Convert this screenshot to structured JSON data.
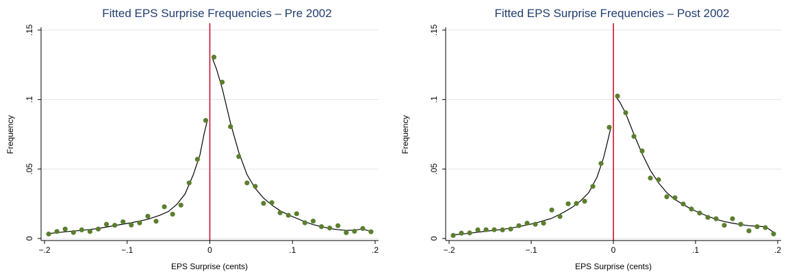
{
  "colors": {
    "title": "#1f3c6e",
    "points": "#5b7f2e",
    "fit_line": "#000000",
    "cutoff_line": "#c8102e",
    "grid": "#e6e6e6"
  },
  "chart_data": [
    {
      "type": "scatter",
      "title": "Fitted EPS Surprise Frequencies – Pre 2002",
      "xlabel": "EPS Surprise (cents)",
      "ylabel": "Frequency",
      "xlim": [
        -0.2,
        0.2
      ],
      "ylim": [
        0,
        0.15
      ],
      "xticks": [
        -0.2,
        -0.1,
        0,
        0.1,
        0.2
      ],
      "xtick_labels": [
        "−.2",
        "−.1",
        "0",
        ".1",
        ".2"
      ],
      "yticks": [
        0,
        0.05,
        0.1,
        0.15
      ],
      "ytick_labels": [
        "0",
        ".05",
        ".1",
        ".15"
      ],
      "grid": true,
      "vertical_line_x": 0,
      "points": {
        "x": [
          -0.195,
          -0.185,
          -0.175,
          -0.165,
          -0.155,
          -0.145,
          -0.135,
          -0.125,
          -0.115,
          -0.105,
          -0.095,
          -0.085,
          -0.075,
          -0.065,
          -0.055,
          -0.045,
          -0.035,
          -0.025,
          -0.015,
          -0.005,
          0.005,
          0.015,
          0.025,
          0.035,
          0.045,
          0.055,
          0.065,
          0.075,
          0.085,
          0.095,
          0.105,
          0.115,
          0.125,
          0.135,
          0.145,
          0.155,
          0.165,
          0.175,
          0.185,
          0.195
        ],
        "y": [
          0.0032,
          0.005,
          0.0068,
          0.0043,
          0.0062,
          0.005,
          0.0068,
          0.0102,
          0.0095,
          0.012,
          0.0097,
          0.0112,
          0.016,
          0.0124,
          0.0228,
          0.0175,
          0.024,
          0.04,
          0.057,
          0.085,
          0.1305,
          0.1125,
          0.0805,
          0.059,
          0.04,
          0.0375,
          0.0253,
          0.0258,
          0.0185,
          0.0167,
          0.0178,
          0.0113,
          0.0125,
          0.0085,
          0.0075,
          0.0092,
          0.0042,
          0.0052,
          0.0072,
          0.0048
        ]
      },
      "fit_left": {
        "x": [
          -0.195,
          -0.175,
          -0.155,
          -0.135,
          -0.115,
          -0.095,
          -0.075,
          -0.06,
          -0.05,
          -0.04,
          -0.03,
          -0.02,
          -0.012,
          -0.007,
          -0.003
        ],
        "y": [
          0.0035,
          0.0048,
          0.0058,
          0.0072,
          0.0093,
          0.0113,
          0.0138,
          0.0168,
          0.0195,
          0.0245,
          0.032,
          0.046,
          0.06,
          0.075,
          0.085
        ]
      },
      "fit_right": {
        "x": [
          0.003,
          0.008,
          0.015,
          0.025,
          0.035,
          0.045,
          0.055,
          0.065,
          0.075,
          0.085,
          0.095,
          0.105,
          0.115,
          0.125,
          0.135,
          0.145,
          0.155,
          0.165,
          0.175,
          0.185,
          0.195
        ],
        "y": [
          0.13,
          0.122,
          0.108,
          0.083,
          0.062,
          0.046,
          0.036,
          0.029,
          0.024,
          0.02,
          0.017,
          0.0145,
          0.012,
          0.01,
          0.0085,
          0.0072,
          0.0063,
          0.0058,
          0.006,
          0.0068,
          0.005
        ]
      }
    },
    {
      "type": "scatter",
      "title": "Fitted EPS Surprise Frequencies – Post 2002",
      "xlabel": "EPS Surprise (cents)",
      "ylabel": "Frequency",
      "xlim": [
        -0.2,
        0.2
      ],
      "ylim": [
        0,
        0.15
      ],
      "xticks": [
        -0.2,
        -0.1,
        0,
        0.1,
        0.2
      ],
      "xtick_labels": [
        "−.2",
        "−.1",
        "0",
        ".1",
        ".2"
      ],
      "yticks": [
        0,
        0.05,
        0.1,
        0.15
      ],
      "ytick_labels": [
        "0",
        ".05",
        ".1",
        ".15"
      ],
      "grid": true,
      "vertical_line_x": 0,
      "points": {
        "x": [
          -0.195,
          -0.185,
          -0.175,
          -0.165,
          -0.155,
          -0.145,
          -0.135,
          -0.125,
          -0.115,
          -0.105,
          -0.095,
          -0.085,
          -0.075,
          -0.065,
          -0.055,
          -0.045,
          -0.035,
          -0.025,
          -0.015,
          -0.005,
          0.005,
          0.015,
          0.025,
          0.035,
          0.045,
          0.055,
          0.065,
          0.075,
          0.085,
          0.095,
          0.105,
          0.115,
          0.125,
          0.135,
          0.145,
          0.155,
          0.165,
          0.175,
          0.185,
          0.195
        ],
        "y": [
          0.0022,
          0.0038,
          0.004,
          0.0062,
          0.0063,
          0.0063,
          0.0062,
          0.0068,
          0.0092,
          0.011,
          0.0102,
          0.011,
          0.0205,
          0.0158,
          0.025,
          0.0252,
          0.0268,
          0.0375,
          0.054,
          0.08,
          0.1025,
          0.0905,
          0.0735,
          0.063,
          0.0435,
          0.0423,
          0.03,
          0.0293,
          0.0248,
          0.0212,
          0.0183,
          0.0152,
          0.0142,
          0.0095,
          0.0142,
          0.0102,
          0.0055,
          0.0085,
          0.0078,
          0.0033
        ]
      },
      "fit_left": {
        "x": [
          -0.195,
          -0.175,
          -0.155,
          -0.135,
          -0.115,
          -0.095,
          -0.075,
          -0.06,
          -0.05,
          -0.04,
          -0.03,
          -0.02,
          -0.012,
          -0.007,
          -0.003
        ],
        "y": [
          0.0025,
          0.0038,
          0.0052,
          0.0065,
          0.0085,
          0.011,
          0.0145,
          0.019,
          0.0225,
          0.027,
          0.033,
          0.044,
          0.058,
          0.07,
          0.08
        ]
      },
      "fit_right": {
        "x": [
          0.003,
          0.008,
          0.015,
          0.025,
          0.035,
          0.045,
          0.055,
          0.065,
          0.075,
          0.085,
          0.095,
          0.105,
          0.115,
          0.125,
          0.135,
          0.145,
          0.155,
          0.165,
          0.175,
          0.185,
          0.195
        ],
        "y": [
          0.102,
          0.098,
          0.09,
          0.075,
          0.061,
          0.049,
          0.04,
          0.033,
          0.028,
          0.0245,
          0.021,
          0.0185,
          0.016,
          0.0138,
          0.0122,
          0.011,
          0.01,
          0.0092,
          0.0088,
          0.0085,
          0.0045
        ]
      }
    }
  ]
}
